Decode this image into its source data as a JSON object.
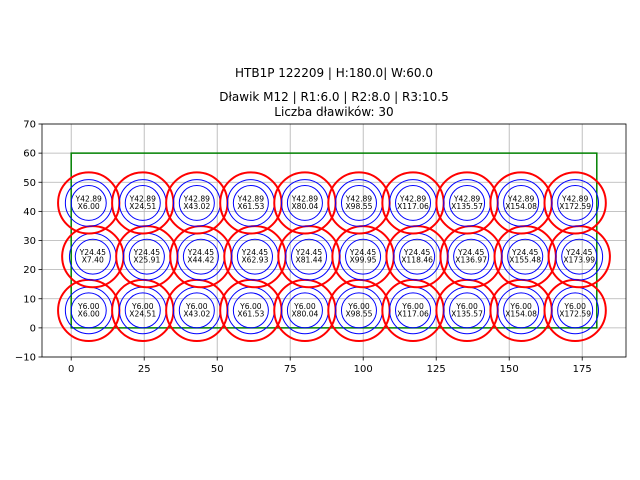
{
  "chart_data": {
    "type": "scatter",
    "title_lines": [
      "HTB1P 122209 | H:180.0| W:60.0",
      "Dławik M12 | R1:6.0 | R2:8.0 | R3:10.5",
      "Liczba dławików: 30"
    ],
    "xlabel": "",
    "ylabel": "",
    "xlim": [
      -10,
      190
    ],
    "ylim": [
      -10,
      70
    ],
    "x_ticks": [
      0,
      25,
      50,
      75,
      100,
      125,
      150,
      175
    ],
    "y_ticks": [
      -10,
      0,
      10,
      20,
      30,
      40,
      50,
      60,
      70
    ],
    "grid": true,
    "enclosure": {
      "x": 0,
      "y": 0,
      "width": 180,
      "height": 60,
      "color": "#008000"
    },
    "radii": {
      "r1": 6.0,
      "r2": 8.0,
      "r3": 10.5
    },
    "colors": {
      "r1": "#0000ff",
      "r2": "#0000ff",
      "r3": "#ff0000"
    },
    "rows": [
      {
        "y": 6.0,
        "y_label": "Y6.00",
        "x": [
          6.0,
          24.51,
          43.02,
          61.53,
          80.04,
          98.55,
          117.06,
          135.57,
          154.08,
          172.59
        ],
        "x_labels": [
          "X6.00",
          "X24.51",
          "X43.02",
          "X61.53",
          "X80.04",
          "X98.55",
          "X117.06",
          "X135.57",
          "X154.08",
          "X172.59"
        ]
      },
      {
        "y": 24.45,
        "y_label": "Y24.45",
        "x": [
          7.4,
          25.91,
          44.42,
          62.93,
          81.44,
          99.95,
          118.46,
          136.97,
          155.48,
          173.99
        ],
        "x_labels": [
          "X7.40",
          "X25.91",
          "X44.42",
          "X62.93",
          "X81.44",
          "X99.95",
          "X118.46",
          "X136.97",
          "X155.48",
          "X173.99"
        ]
      },
      {
        "y": 42.89,
        "y_label": "Y42.89",
        "x": [
          6.0,
          24.51,
          43.02,
          61.53,
          80.04,
          98.55,
          117.06,
          135.57,
          154.08,
          172.59
        ],
        "x_labels": [
          "X6.00",
          "X24.51",
          "X43.02",
          "X61.53",
          "X80.04",
          "X98.55",
          "X117.06",
          "X135.57",
          "X154.08",
          "X172.59"
        ]
      }
    ]
  }
}
